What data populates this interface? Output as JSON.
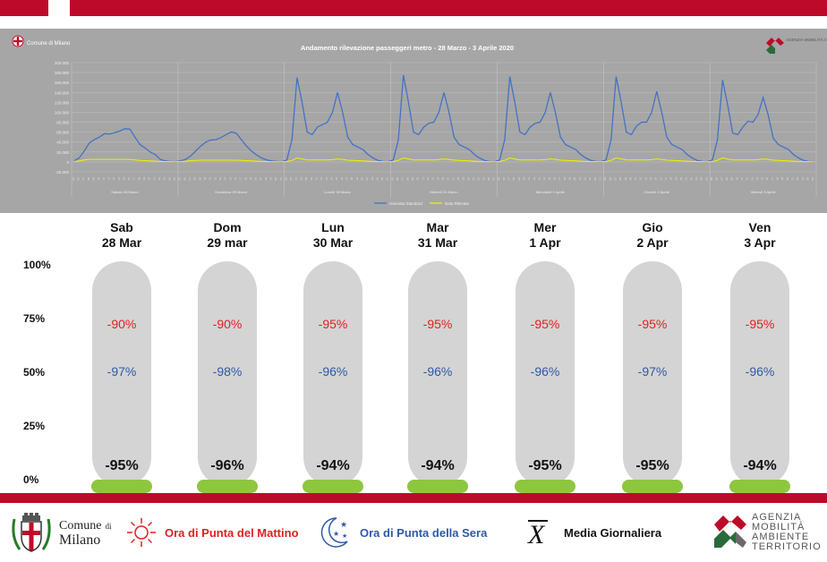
{
  "header": {
    "chart_title": "Andamento rilevazione passeggeri metro - 28 Marzo -  3 Aprile 2020",
    "logo_small_left": "Comune di Milano",
    "logo_small_right": "AGENZIA MOBILITÀ AMBIENTE TERRITORIO"
  },
  "chart_data": [
    {
      "type": "line",
      "title": "Andamento rilevazione passeggeri metro - 28 Marzo -  3 Aprile 2020",
      "ylim": [
        -20000,
        200000
      ],
      "yticks": [
        "-20.000",
        "0",
        "20.000",
        "40.000",
        "60.000",
        "80.000",
        "100.000",
        "120.000",
        "140.000",
        "160.000",
        "180.000",
        "200.000"
      ],
      "days": [
        "Sabato 28 Marzo",
        "Domenica 29 Marzo",
        "Lunedì 30 Marzo",
        "Martedì 31 Marzo",
        "Mercoledì 1 Aprile",
        "Giovedì 2 Aprile",
        "Venerdì 3 Aprile"
      ],
      "x_per_day": [
        "05",
        "06",
        "07",
        "08",
        "09",
        "10",
        "11",
        "12",
        "13",
        "14",
        "15",
        "16",
        "17",
        "18",
        "19",
        "20",
        "21",
        "22",
        "23",
        "00",
        "01"
      ],
      "series": [
        {
          "name": "Giornata Standard",
          "color": "#4472c4",
          "values": [
            [
              2000,
              8000,
              22000,
              38000,
              45000,
              50000,
              57000,
              56000,
              59000,
              62000,
              67000,
              66000,
              50000,
              35000,
              28000,
              20000,
              15000,
              5000,
              2000,
              1000,
              500
            ],
            [
              2000,
              5000,
              12000,
              22000,
              32000,
              40000,
              44000,
              45000,
              49000,
              55000,
              60000,
              58000,
              45000,
              32000,
              22000,
              14000,
              8000,
              4000,
              2000,
              1000,
              500
            ],
            [
              4000,
              45000,
              170000,
              120000,
              60000,
              55000,
              70000,
              75000,
              80000,
              100000,
              140000,
              100000,
              50000,
              35000,
              30000,
              25000,
              15000,
              8000,
              3000,
              1000,
              500
            ],
            [
              4000,
              45000,
              175000,
              120000,
              60000,
              55000,
              70000,
              78000,
              80000,
              100000,
              140000,
              100000,
              50000,
              35000,
              30000,
              25000,
              15000,
              8000,
              3000,
              1000,
              500
            ],
            [
              4000,
              45000,
              172000,
              120000,
              60000,
              55000,
              70000,
              78000,
              80000,
              100000,
              140000,
              100000,
              50000,
              35000,
              30000,
              25000,
              15000,
              8000,
              3000,
              1000,
              500
            ],
            [
              4000,
              45000,
              172000,
              120000,
              60000,
              55000,
              72000,
              80000,
              80000,
              100000,
              142000,
              100000,
              50000,
              35000,
              30000,
              25000,
              15000,
              8000,
              3000,
              1000,
              500
            ],
            [
              4000,
              45000,
              165000,
              115000,
              58000,
              55000,
              70000,
              82000,
              80000,
              95000,
              130000,
              95000,
              48000,
              35000,
              30000,
              25000,
              15000,
              8000,
              3000,
              1000,
              500
            ]
          ]
        },
        {
          "name": "Data Rilevata",
          "color": "#f2f200",
          "values": [
            [
              1000,
              2000,
              4000,
              5000,
              5000,
              5000,
              5000,
              5000,
              5000,
              5000,
              5000,
              5000,
              4000,
              3000,
              2500,
              2000,
              1500,
              1000,
              800,
              500,
              300
            ],
            [
              800,
              1500,
              2500,
              3000,
              3500,
              3500,
              3500,
              3500,
              3500,
              3500,
              3500,
              3500,
              3000,
              2500,
              2000,
              1500,
              1000,
              800,
              600,
              400,
              300
            ],
            [
              800,
              3000,
              8000,
              6000,
              4000,
              4000,
              4000,
              4000,
              4000,
              4500,
              6000,
              5000,
              3500,
              3000,
              2500,
              2000,
              1500,
              1000,
              800,
              500,
              300
            ],
            [
              800,
              3000,
              8000,
              6000,
              4000,
              4000,
              4000,
              4000,
              4000,
              4500,
              6000,
              5000,
              3500,
              3000,
              2500,
              2000,
              1500,
              1000,
              800,
              500,
              300
            ],
            [
              800,
              3000,
              8000,
              6000,
              4000,
              4000,
              4000,
              4000,
              4000,
              4500,
              6000,
              5000,
              3500,
              3000,
              2500,
              2000,
              1500,
              1000,
              800,
              500,
              300
            ],
            [
              800,
              3000,
              8000,
              6000,
              4000,
              4000,
              4000,
              4000,
              4000,
              4500,
              6000,
              5000,
              3500,
              3000,
              2500,
              2000,
              1500,
              1000,
              800,
              500,
              300
            ],
            [
              800,
              3000,
              8000,
              6000,
              4000,
              4000,
              4000,
              4000,
              4000,
              4500,
              6000,
              5000,
              3500,
              3000,
              2500,
              2000,
              1500,
              1000,
              800,
              500,
              300
            ]
          ]
        }
      ],
      "legend": "bottom",
      "grid": true
    },
    {
      "type": "table",
      "ylabels": [
        "100%",
        "75%",
        "50%",
        "25%",
        "0%"
      ],
      "columns": [
        {
          "day": "Sab",
          "date": "28 Mar",
          "morning": "-90%",
          "evening": "-97%",
          "average": "-95%"
        },
        {
          "day": "Dom",
          "date": "29 mar",
          "morning": "-90%",
          "evening": "-98%",
          "average": "-96%"
        },
        {
          "day": "Lun",
          "date": "30 Mar",
          "morning": "-95%",
          "evening": "-96%",
          "average": "-94%"
        },
        {
          "day": "Mar",
          "date": "31 Mar",
          "morning": "-95%",
          "evening": "-96%",
          "average": "-94%"
        },
        {
          "day": "Mer",
          "date": "1 Apr",
          "morning": "-95%",
          "evening": "-96%",
          "average": "-95%"
        },
        {
          "day": "Gio",
          "date": "2 Apr",
          "morning": "-95%",
          "evening": "-97%",
          "average": "-95%"
        },
        {
          "day": "Ven",
          "date": "3 Apr",
          "morning": "-95%",
          "evening": "-96%",
          "average": "-94%"
        }
      ]
    }
  ],
  "footer": {
    "comune_line1": "Comune",
    "comune_di": "di",
    "comune_line2": "Milano",
    "legend_morning": "Ora di Punta del Mattino",
    "legend_evening": "Ora di Punta della Sera",
    "legend_average_symbol": "X",
    "legend_average": "Media Giornaliera",
    "amat_lines": [
      "AGENZIA",
      "MOBILITÀ",
      "AMBIENTE",
      "TERRITORIO"
    ],
    "colors": {
      "brand_red": "#be0a2a",
      "morning": "#e02020",
      "evening": "#2e59a8",
      "base_green": "#8dc63f"
    }
  }
}
